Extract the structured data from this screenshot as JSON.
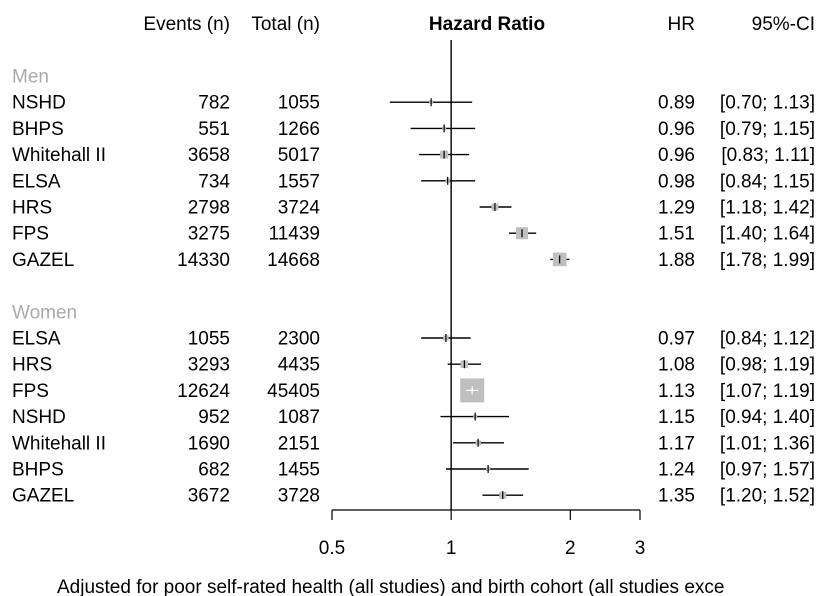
{
  "chart_data": {
    "type": "forest",
    "title": "Hazard Ratio",
    "columns": {
      "events": "Events (n)",
      "total": "Total (n)",
      "hr": "HR",
      "ci": "95%-CI"
    },
    "scale": "log",
    "xlim": [
      0.5,
      3
    ],
    "xticks": [
      0.5,
      1,
      2,
      3
    ],
    "xtick_labels": [
      "0.5",
      "1",
      "2",
      "3"
    ],
    "reference_line": 1,
    "footnote": "Adjusted for poor self-rated health (all studies) and birth cohort (all studies exce",
    "groups": [
      {
        "name": "Men",
        "rows": [
          {
            "study": "NSHD",
            "events": 782,
            "total": 1055,
            "hr": 0.89,
            "lo": 0.7,
            "hi": 1.13,
            "hr_text": "0.89",
            "ci_text": "[0.70; 1.13]"
          },
          {
            "study": "BHPS",
            "events": 551,
            "total": 1266,
            "hr": 0.96,
            "lo": 0.79,
            "hi": 1.15,
            "hr_text": "0.96",
            "ci_text": "[0.79; 1.15]"
          },
          {
            "study": "Whitehall II",
            "events": 3658,
            "total": 5017,
            "hr": 0.96,
            "lo": 0.83,
            "hi": 1.11,
            "hr_text": "0.96",
            "ci_text": "[0.83; 1.11]"
          },
          {
            "study": "ELSA",
            "events": 734,
            "total": 1557,
            "hr": 0.98,
            "lo": 0.84,
            "hi": 1.15,
            "hr_text": "0.98",
            "ci_text": "[0.84; 1.15]"
          },
          {
            "study": "HRS",
            "events": 2798,
            "total": 3724,
            "hr": 1.29,
            "lo": 1.18,
            "hi": 1.42,
            "hr_text": "1.29",
            "ci_text": "[1.18; 1.42]"
          },
          {
            "study": "FPS",
            "events": 3275,
            "total": 11439,
            "hr": 1.51,
            "lo": 1.4,
            "hi": 1.64,
            "hr_text": "1.51",
            "ci_text": "[1.40; 1.64]"
          },
          {
            "study": "GAZEL",
            "events": 14330,
            "total": 14668,
            "hr": 1.88,
            "lo": 1.78,
            "hi": 1.99,
            "hr_text": "1.88",
            "ci_text": "[1.78; 1.99]"
          }
        ]
      },
      {
        "name": "Women",
        "rows": [
          {
            "study": "ELSA",
            "events": 1055,
            "total": 2300,
            "hr": 0.97,
            "lo": 0.84,
            "hi": 1.12,
            "hr_text": "0.97",
            "ci_text": "[0.84; 1.12]"
          },
          {
            "study": "HRS",
            "events": 3293,
            "total": 4435,
            "hr": 1.08,
            "lo": 0.98,
            "hi": 1.19,
            "hr_text": "1.08",
            "ci_text": "[0.98; 1.19]"
          },
          {
            "study": "FPS",
            "events": 12624,
            "total": 45405,
            "hr": 1.13,
            "lo": 1.07,
            "hi": 1.19,
            "hr_text": "1.13",
            "ci_text": "[1.07; 1.19]"
          },
          {
            "study": "NSHD",
            "events": 952,
            "total": 1087,
            "hr": 1.15,
            "lo": 0.94,
            "hi": 1.4,
            "hr_text": "1.15",
            "ci_text": "[0.94; 1.40]"
          },
          {
            "study": "Whitehall II",
            "events": 1690,
            "total": 2151,
            "hr": 1.17,
            "lo": 1.01,
            "hi": 1.36,
            "hr_text": "1.17",
            "ci_text": "[1.01; 1.36]"
          },
          {
            "study": "BHPS",
            "events": 682,
            "total": 1455,
            "hr": 1.24,
            "lo": 0.97,
            "hi": 1.57,
            "hr_text": "1.24",
            "ci_text": "[0.97; 1.57]"
          },
          {
            "study": "GAZEL",
            "events": 3672,
            "total": 3728,
            "hr": 1.35,
            "lo": 1.2,
            "hi": 1.52,
            "hr_text": "1.35",
            "ci_text": "[1.20; 1.52]"
          }
        ]
      }
    ],
    "colors": {
      "group_label": "#aaaaaa",
      "box": "#bfbfbf",
      "line": "#000000",
      "large_tick": "#ffffff"
    }
  }
}
